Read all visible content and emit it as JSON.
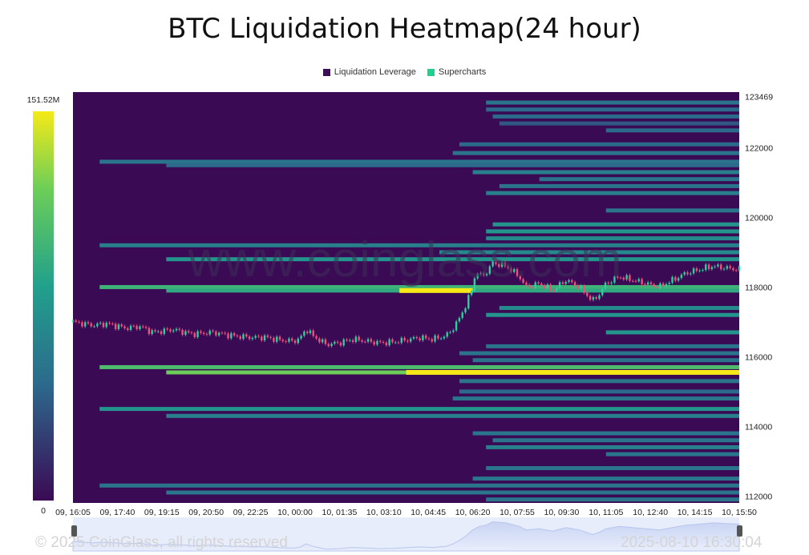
{
  "chart_data": {
    "type": "heatmap",
    "title": "BTC Liquidation Heatmap(24 hour)",
    "legend": [
      {
        "name": "Liquidation Leverage",
        "color": "#3d0c5a"
      },
      {
        "name": "Supercharts",
        "color": "#21d08c"
      }
    ],
    "colorscale": {
      "min_label": "0",
      "max_label": "151.52M",
      "colors": [
        "#3b0a55",
        "#2c6a8c",
        "#21a08c",
        "#6cce58",
        "#f5ea18"
      ]
    },
    "y_ticks": [
      123469,
      122000,
      120000,
      118000,
      116000,
      114000,
      112000
    ],
    "y_tick_labels": [
      "123469",
      "122000",
      "120000",
      "118000",
      "116000",
      "114000",
      "112000"
    ],
    "ylim": [
      111800,
      123600
    ],
    "x_tick_labels": [
      "09, 16:05",
      "09, 17:40",
      "09, 19:15",
      "09, 20:50",
      "09, 22:25",
      "10, 00:00",
      "10, 01:35",
      "10, 03:10",
      "10, 04:45",
      "10, 06:20",
      "10, 07:55",
      "10, 09:30",
      "10, 11:05",
      "10, 12:40",
      "10, 14:15",
      "10, 15:50"
    ],
    "price_path": [
      [
        0,
        117000
      ],
      [
        0.03,
        116900
      ],
      [
        0.05,
        116950
      ],
      [
        0.08,
        116820
      ],
      [
        0.1,
        116870
      ],
      [
        0.12,
        116700
      ],
      [
        0.15,
        116780
      ],
      [
        0.18,
        116650
      ],
      [
        0.21,
        116700
      ],
      [
        0.24,
        116600
      ],
      [
        0.27,
        116550
      ],
      [
        0.29,
        116560
      ],
      [
        0.31,
        116480
      ],
      [
        0.33,
        116450
      ],
      [
        0.34,
        116500
      ],
      [
        0.35,
        116800
      ],
      [
        0.36,
        116600
      ],
      [
        0.38,
        116350
      ],
      [
        0.4,
        116400
      ],
      [
        0.42,
        116500
      ],
      [
        0.44,
        116450
      ],
      [
        0.46,
        116400
      ],
      [
        0.48,
        116420
      ],
      [
        0.5,
        116480
      ],
      [
        0.52,
        116550
      ],
      [
        0.54,
        116500
      ],
      [
        0.56,
        116600
      ],
      [
        0.57,
        116800
      ],
      [
        0.58,
        117100
      ],
      [
        0.59,
        117500
      ],
      [
        0.6,
        118000
      ],
      [
        0.605,
        118500
      ],
      [
        0.61,
        118300
      ],
      [
        0.62,
        118400
      ],
      [
        0.63,
        118700
      ],
      [
        0.65,
        118600
      ],
      [
        0.67,
        118300
      ],
      [
        0.68,
        118000
      ],
      [
        0.7,
        118100
      ],
      [
        0.72,
        117900
      ],
      [
        0.74,
        118200
      ],
      [
        0.76,
        118000
      ],
      [
        0.78,
        117600
      ],
      [
        0.79,
        117800
      ],
      [
        0.8,
        118100
      ],
      [
        0.82,
        118300
      ],
      [
        0.84,
        118200
      ],
      [
        0.86,
        118100
      ],
      [
        0.88,
        118000
      ],
      [
        0.9,
        118200
      ],
      [
        0.92,
        118400
      ],
      [
        0.94,
        118500
      ],
      [
        0.96,
        118600
      ],
      [
        0.98,
        118550
      ],
      [
        1.0,
        118500
      ]
    ],
    "bands": [
      {
        "price": 123300,
        "start": 0.62,
        "intensity": 0.3
      },
      {
        "price": 123100,
        "start": 0.62,
        "intensity": 0.25
      },
      {
        "price": 122900,
        "start": 0.63,
        "intensity": 0.25
      },
      {
        "price": 122700,
        "start": 0.64,
        "intensity": 0.2
      },
      {
        "price": 122500,
        "start": 0.8,
        "intensity": 0.25
      },
      {
        "price": 122100,
        "start": 0.58,
        "intensity": 0.25
      },
      {
        "price": 121850,
        "start": 0.57,
        "intensity": 0.3
      },
      {
        "price": 121600,
        "start": 0.04,
        "intensity": 0.3
      },
      {
        "price": 121500,
        "start": 0.14,
        "intensity": 0.25
      },
      {
        "price": 121300,
        "start": 0.6,
        "intensity": 0.35
      },
      {
        "price": 121100,
        "start": 0.7,
        "intensity": 0.3
      },
      {
        "price": 120900,
        "start": 0.64,
        "intensity": 0.3
      },
      {
        "price": 120700,
        "start": 0.62,
        "intensity": 0.35
      },
      {
        "price": 120200,
        "start": 0.8,
        "intensity": 0.3
      },
      {
        "price": 119800,
        "start": 0.63,
        "intensity": 0.45
      },
      {
        "price": 119600,
        "start": 0.62,
        "intensity": 0.45
      },
      {
        "price": 119400,
        "start": 0.62,
        "intensity": 0.4
      },
      {
        "price": 119200,
        "start": 0.04,
        "intensity": 0.35
      },
      {
        "price": 119000,
        "start": 0.55,
        "intensity": 0.4
      },
      {
        "price": 118800,
        "start": 0.14,
        "intensity": 0.45
      },
      {
        "price": 118000,
        "start": 0.04,
        "intensity": 0.6
      },
      {
        "price": 117900,
        "start": 0.14,
        "intensity": 0.55
      },
      {
        "price": 117400,
        "start": 0.64,
        "intensity": 0.4
      },
      {
        "price": 117200,
        "start": 0.62,
        "intensity": 0.45
      },
      {
        "price": 116700,
        "start": 0.8,
        "intensity": 0.45
      },
      {
        "price": 116300,
        "start": 0.62,
        "intensity": 0.3
      },
      {
        "price": 116100,
        "start": 0.58,
        "intensity": 0.3
      },
      {
        "price": 115900,
        "start": 0.6,
        "intensity": 0.3
      },
      {
        "price": 115700,
        "start": 0.04,
        "intensity": 0.65
      },
      {
        "price": 115550,
        "start": 0.14,
        "intensity": 0.75
      },
      {
        "price": 115300,
        "start": 0.58,
        "intensity": 0.3
      },
      {
        "price": 115000,
        "start": 0.58,
        "intensity": 0.25
      },
      {
        "price": 114800,
        "start": 0.57,
        "intensity": 0.3
      },
      {
        "price": 114500,
        "start": 0.04,
        "intensity": 0.45
      },
      {
        "price": 114300,
        "start": 0.14,
        "intensity": 0.35
      },
      {
        "price": 113800,
        "start": 0.6,
        "intensity": 0.3
      },
      {
        "price": 113600,
        "start": 0.63,
        "intensity": 0.3
      },
      {
        "price": 113400,
        "start": 0.62,
        "intensity": 0.35
      },
      {
        "price": 113200,
        "start": 0.8,
        "intensity": 0.3
      },
      {
        "price": 112800,
        "start": 0.62,
        "intensity": 0.3
      },
      {
        "price": 112500,
        "start": 0.6,
        "intensity": 0.3
      },
      {
        "price": 112300,
        "start": 0.04,
        "intensity": 0.3
      },
      {
        "price": 112100,
        "start": 0.14,
        "intensity": 0.3
      },
      {
        "price": 111900,
        "start": 0.62,
        "intensity": 0.3
      }
    ],
    "hotspots": [
      {
        "price": 117900,
        "start": 0.49,
        "end": 0.6,
        "intensity": 1.0
      },
      {
        "price": 115550,
        "start": 0.5,
        "end": 1.0,
        "intensity": 1.0
      }
    ],
    "watermark": "www.coinglass.com"
  },
  "footer": {
    "copyright": "© 2025 CoinGlass, all rights reserved",
    "timestamp": "2025-08-10 16:30:04"
  }
}
